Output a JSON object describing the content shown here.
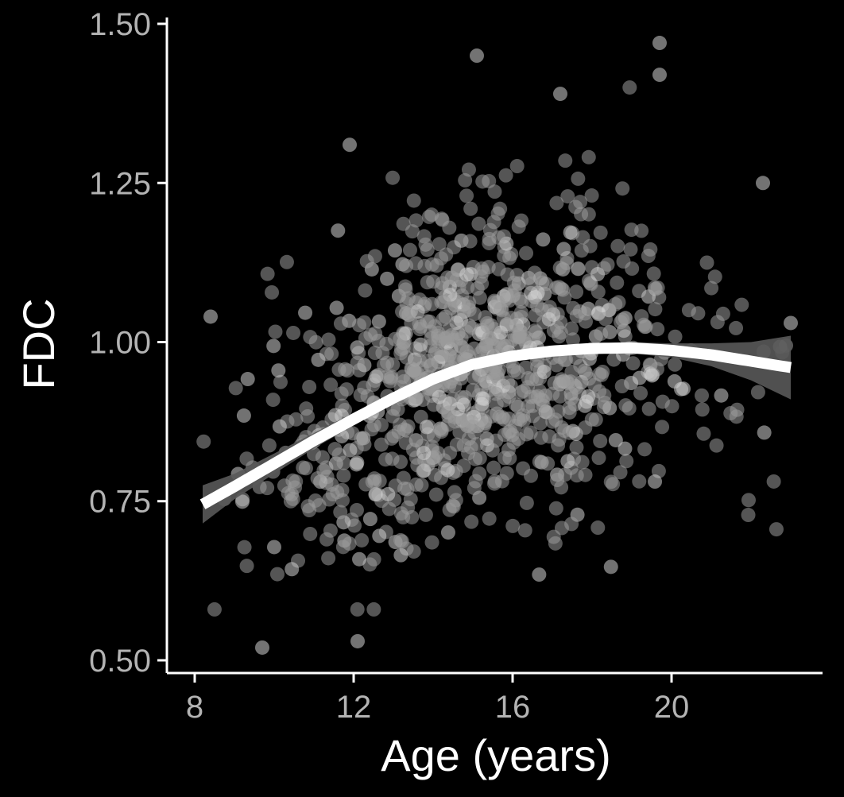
{
  "chart_data": {
    "type": "scatter",
    "title": "",
    "xlabel": "Age (years)",
    "ylabel": "FDC",
    "xlim": [
      7.3,
      23.8
    ],
    "ylim": [
      0.48,
      1.51
    ],
    "x_ticks": [
      8,
      12,
      16,
      20
    ],
    "y_ticks": [
      0.5,
      0.75,
      1.0,
      1.25,
      1.5
    ],
    "x_tick_labels": [
      "8",
      "12",
      "16",
      "20"
    ],
    "y_tick_labels": [
      "0.50",
      "0.75",
      "1.00",
      "1.25",
      "1.50"
    ],
    "grid": false,
    "legend": "none",
    "colors": {
      "background": "#000000",
      "axis": "#ffffff",
      "points": "#9a9a9a",
      "fit_line": "#ffffff",
      "confidence_band": "#595959",
      "tick_labels": "#b3b3b3"
    },
    "point_opacity": 0.55,
    "notable_points": [
      {
        "x": 9.7,
        "y": 0.52
      },
      {
        "x": 12.1,
        "y": 0.53
      },
      {
        "x": 11.9,
        "y": 1.31
      },
      {
        "x": 15.1,
        "y": 1.45
      },
      {
        "x": 19.7,
        "y": 1.47
      },
      {
        "x": 19.7,
        "y": 1.42
      },
      {
        "x": 17.2,
        "y": 1.39
      },
      {
        "x": 22.3,
        "y": 1.25
      },
      {
        "x": 8.4,
        "y": 1.04
      },
      {
        "x": 23.0,
        "y": 1.03
      }
    ],
    "trend": {
      "description": "smoothed fit with confidence band",
      "x": [
        8.2,
        9,
        10,
        11,
        12,
        13,
        14,
        15,
        16,
        17,
        18,
        19,
        20,
        21,
        22,
        23
      ],
      "y": [
        0.745,
        0.773,
        0.809,
        0.845,
        0.879,
        0.912,
        0.942,
        0.965,
        0.978,
        0.986,
        0.99,
        0.991,
        0.987,
        0.98,
        0.97,
        0.96
      ],
      "lower": [
        0.715,
        0.753,
        0.793,
        0.833,
        0.869,
        0.904,
        0.934,
        0.957,
        0.97,
        0.978,
        0.982,
        0.982,
        0.976,
        0.962,
        0.94,
        0.91
      ],
      "upper": [
        0.775,
        0.793,
        0.825,
        0.857,
        0.889,
        0.92,
        0.95,
        0.973,
        0.986,
        0.994,
        0.998,
        1.0,
        0.998,
        0.998,
        1.0,
        1.01
      ]
    },
    "scatter_density": {
      "n_points": 1000,
      "x_range": [
        8.1,
        23.0
      ],
      "residual_sd": 0.12
    }
  }
}
